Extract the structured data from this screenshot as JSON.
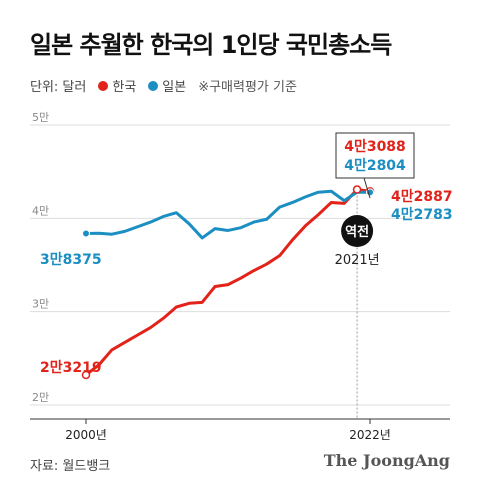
{
  "title": "일본 추월한 한국의 1인당 국민총소득",
  "legend": {
    "unit": "단위: 달러",
    "korea": "한국",
    "japan": "일본",
    "note": "※구매력평가 기준"
  },
  "source": "자료: 월드뱅크",
  "brand": "The JoongAng",
  "colors": {
    "korea": "#e2231a",
    "japan": "#1b8ec2",
    "text": "#222222",
    "grid": "#dddddd"
  },
  "chart_data": {
    "type": "line",
    "x": [
      2000,
      2001,
      2002,
      2003,
      2004,
      2005,
      2006,
      2007,
      2008,
      2009,
      2010,
      2011,
      2012,
      2013,
      2014,
      2015,
      2016,
      2017,
      2018,
      2019,
      2020,
      2021,
      2022
    ],
    "series": [
      {
        "name": "한국",
        "values": [
          23219,
          24300,
          25900,
          26700,
          27500,
          28300,
          29300,
          30500,
          30900,
          31000,
          32700,
          32900,
          33600,
          34400,
          35100,
          36000,
          37700,
          39200,
          40400,
          41700,
          41600,
          43088,
          42887
        ]
      },
      {
        "name": "일본",
        "values": [
          38375,
          38400,
          38300,
          38600,
          39100,
          39600,
          40200,
          40600,
          39400,
          37900,
          38900,
          38700,
          39000,
          39600,
          39900,
          41200,
          41700,
          42300,
          42800,
          42900,
          41900,
          42804,
          42783
        ]
      }
    ],
    "ylim": [
      20000,
      50000
    ],
    "yticks": [
      {
        "value": 20000,
        "label": "2만"
      },
      {
        "value": 30000,
        "label": "3만"
      },
      {
        "value": 40000,
        "label": "4만"
      },
      {
        "value": 50000,
        "label": "5만"
      }
    ],
    "xticks": [
      {
        "value": 2000,
        "label": "2000년"
      },
      {
        "value": 2022,
        "label": "2022년"
      }
    ],
    "labels": {
      "korea_start": "2만3219",
      "japan_start": "3만8375",
      "korea_2021": "4만3088",
      "japan_2021": "4만2804",
      "korea_end": "4만2887",
      "japan_end": "4만2783",
      "crossover_badge": "역전",
      "crossover_year": "2021년"
    },
    "grid": true
  }
}
